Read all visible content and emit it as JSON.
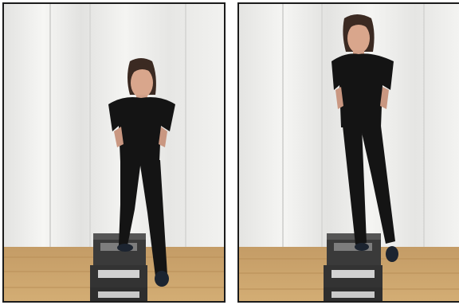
{
  "figure": {
    "panels": [
      {
        "id": "left",
        "icon": "person-stepping-onto-box-photo"
      },
      {
        "id": "right",
        "icon": "person-standing-on-box-one-leg-raised-photo"
      }
    ]
  },
  "colors": {
    "curtain_light": "#f1f1ef",
    "curtain_shadow": "#dcdcda",
    "floor": "#c9a36b",
    "floor_dark": "#b58c55",
    "clothing": "#141414",
    "skin": "#d9a68c",
    "hair": "#3b2a22",
    "step_box": "#3e3e3e",
    "step_top": "#cfcfcf"
  }
}
